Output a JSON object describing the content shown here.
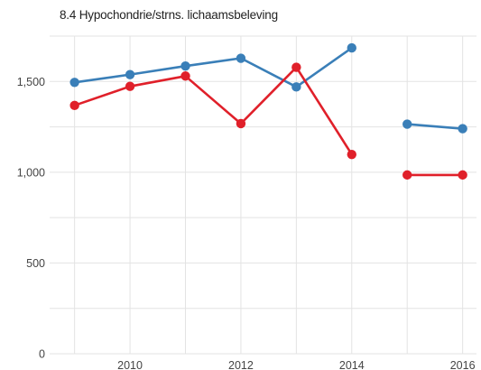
{
  "chart_data": {
    "type": "line",
    "title": "8.4 Hypochondrie/strns. lichaamsbeleving",
    "xlabel": "",
    "ylabel": "",
    "xlim": [
      2008.55,
      2016.25
    ],
    "ylim": [
      0,
      1750
    ],
    "x_ticks": [
      2010,
      2012,
      2014,
      2016
    ],
    "x_tick_labels": [
      "2010",
      "2012",
      "2014",
      "2016"
    ],
    "y_ticks": [
      0,
      500,
      1000,
      1500
    ],
    "y_tick_labels": [
      "0",
      "500",
      "1,000",
      "1,500"
    ],
    "grid": true,
    "legend": "none",
    "series": [
      {
        "color": "#3a7fb8",
        "points": [
          {
            "x": 2009,
            "y": 1495
          },
          {
            "x": 2010,
            "y": 1538
          },
          {
            "x": 2011,
            "y": 1585
          },
          {
            "x": 2012,
            "y": 1628
          },
          {
            "x": 2013,
            "y": 1470
          },
          {
            "x": 2014,
            "y": 1685
          },
          {
            "x": 2015,
            "y": 1265
          },
          {
            "x": 2016,
            "y": 1240
          }
        ],
        "gap_after_x": 2014
      },
      {
        "color": "#e0202a",
        "points": [
          {
            "x": 2009,
            "y": 1368
          },
          {
            "x": 2010,
            "y": 1473
          },
          {
            "x": 2011,
            "y": 1530
          },
          {
            "x": 2012,
            "y": 1268
          },
          {
            "x": 2013,
            "y": 1578
          },
          {
            "x": 2014,
            "y": 1098
          },
          {
            "x": 2015,
            "y": 985
          },
          {
            "x": 2016,
            "y": 985
          }
        ],
        "gap_after_x": 2014
      }
    ]
  }
}
